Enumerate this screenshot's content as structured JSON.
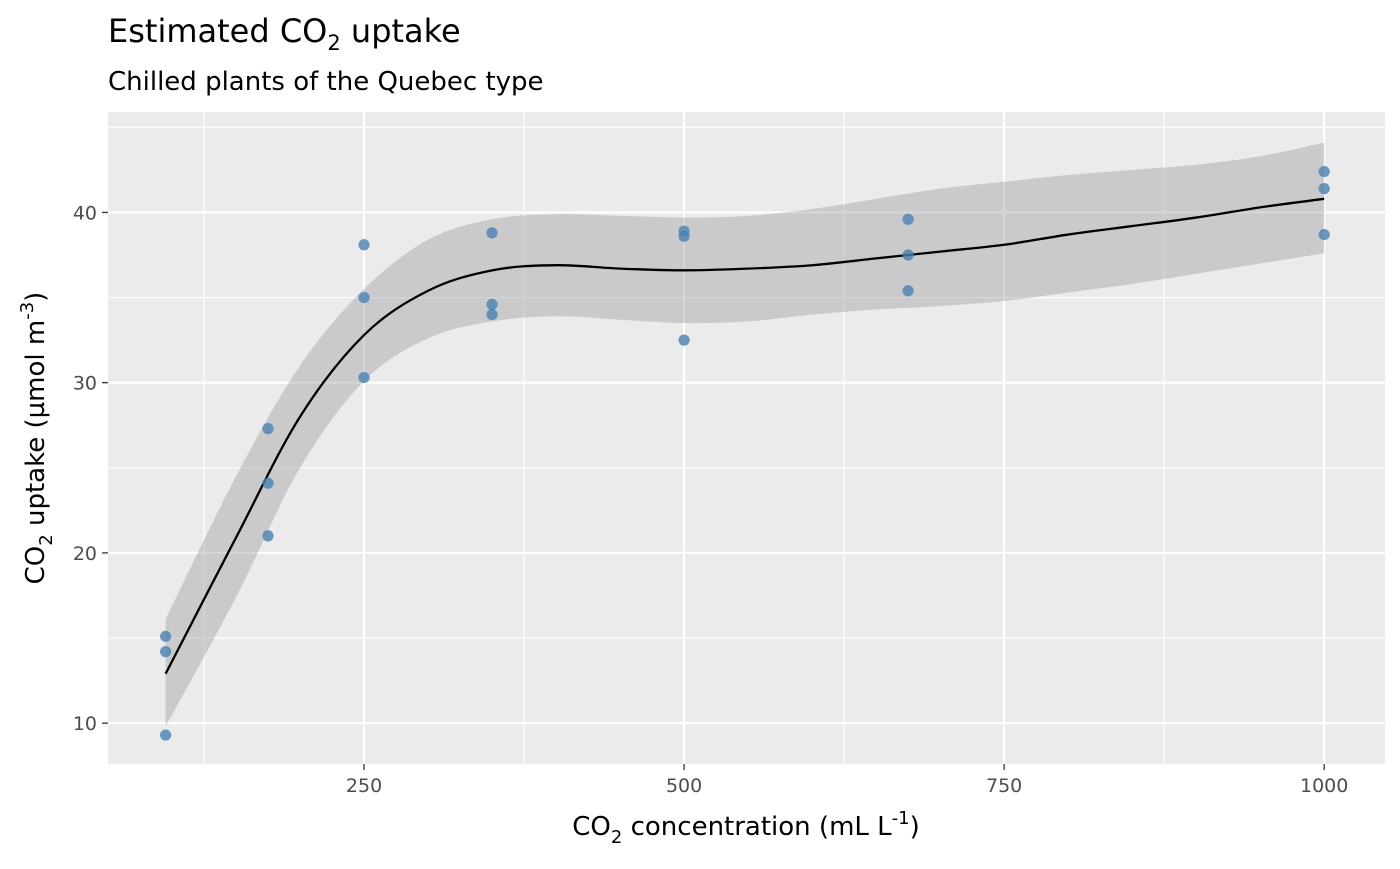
{
  "chart_data": {
    "type": "scatter",
    "title": {
      "pre": "Estimated CO",
      "sub": "2",
      "post": " uptake"
    },
    "subtitle": "Chilled plants of the Quebec type",
    "xlabel": {
      "pre": "CO",
      "sub": "2",
      "post": " concentration (mL L",
      "sup": "-1",
      "end": ")"
    },
    "ylabel": {
      "pre": "CO",
      "sub": "2",
      "post": " uptake (µmol m",
      "sup": "-3",
      "end": ")"
    },
    "xlim": [
      50,
      1047.5
    ],
    "ylim": [
      7.6,
      45.9
    ],
    "x_ticks": [
      250,
      500,
      750,
      1000
    ],
    "x_minor": [
      125,
      375,
      625,
      875
    ],
    "y_ticks": [
      10,
      20,
      30,
      40
    ],
    "y_minor": [
      15,
      25,
      35,
      45
    ],
    "grid": true,
    "colors": {
      "points": "#4682b4",
      "line": "#000000",
      "ribbon": "#999999",
      "panel": "#ebebeb"
    },
    "points": [
      {
        "x": 95,
        "y": 15.1
      },
      {
        "x": 95,
        "y": 14.2
      },
      {
        "x": 95,
        "y": 9.3
      },
      {
        "x": 175,
        "y": 27.3
      },
      {
        "x": 175,
        "y": 24.1
      },
      {
        "x": 175,
        "y": 21.0
      },
      {
        "x": 250,
        "y": 38.1
      },
      {
        "x": 250,
        "y": 35.0
      },
      {
        "x": 250,
        "y": 30.3
      },
      {
        "x": 350,
        "y": 38.8
      },
      {
        "x": 350,
        "y": 34.6
      },
      {
        "x": 350,
        "y": 34.0
      },
      {
        "x": 500,
        "y": 38.9
      },
      {
        "x": 500,
        "y": 38.6
      },
      {
        "x": 500,
        "y": 32.5
      },
      {
        "x": 675,
        "y": 39.6
      },
      {
        "x": 675,
        "y": 37.5
      },
      {
        "x": 675,
        "y": 35.4
      },
      {
        "x": 1000,
        "y": 42.4
      },
      {
        "x": 1000,
        "y": 41.4
      },
      {
        "x": 1000,
        "y": 38.7
      }
    ],
    "smooth": [
      {
        "x": 95,
        "y": 12.9,
        "lo": 9.8,
        "hi": 16.1
      },
      {
        "x": 150,
        "y": 20.9,
        "lo": 17.4,
        "hi": 24.5
      },
      {
        "x": 200,
        "y": 28.0,
        "lo": 25.0,
        "hi": 31.0
      },
      {
        "x": 250,
        "y": 32.8,
        "lo": 30.1,
        "hi": 35.5
      },
      {
        "x": 300,
        "y": 35.4,
        "lo": 32.6,
        "hi": 38.4
      },
      {
        "x": 350,
        "y": 36.6,
        "lo": 33.6,
        "hi": 39.6
      },
      {
        "x": 400,
        "y": 36.9,
        "lo": 33.9,
        "hi": 39.9
      },
      {
        "x": 450,
        "y": 36.7,
        "lo": 33.7,
        "hi": 39.8
      },
      {
        "x": 500,
        "y": 36.6,
        "lo": 33.5,
        "hi": 39.7
      },
      {
        "x": 550,
        "y": 36.7,
        "lo": 33.6,
        "hi": 39.8
      },
      {
        "x": 600,
        "y": 36.9,
        "lo": 34.0,
        "hi": 40.2
      },
      {
        "x": 650,
        "y": 37.3,
        "lo": 34.3,
        "hi": 40.8
      },
      {
        "x": 700,
        "y": 37.7,
        "lo": 34.5,
        "hi": 41.4
      },
      {
        "x": 750,
        "y": 38.1,
        "lo": 34.8,
        "hi": 41.8
      },
      {
        "x": 800,
        "y": 38.7,
        "lo": 35.3,
        "hi": 42.2
      },
      {
        "x": 850,
        "y": 39.2,
        "lo": 35.8,
        "hi": 42.5
      },
      {
        "x": 900,
        "y": 39.7,
        "lo": 36.4,
        "hi": 42.8
      },
      {
        "x": 950,
        "y": 40.3,
        "lo": 37.0,
        "hi": 43.3
      },
      {
        "x": 1000,
        "y": 40.8,
        "lo": 37.6,
        "hi": 44.1
      }
    ]
  }
}
